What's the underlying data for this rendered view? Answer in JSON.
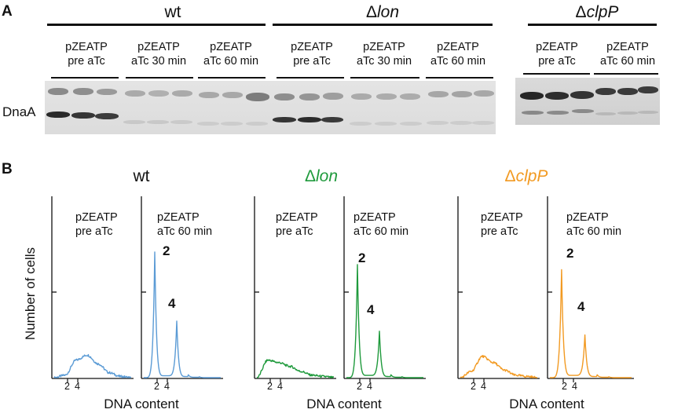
{
  "panel_a": {
    "letter": "A",
    "genotypes": {
      "wt": "wt",
      "lon_delta": "Δ",
      "lon_name": "lon",
      "clpp_delta": "Δ",
      "clpp_name": "clpP"
    },
    "lane_groups": [
      {
        "line1": "pZEATP",
        "line2": "pre aTc"
      },
      {
        "line1": "pZEATP",
        "line2": "aTc 30 min"
      },
      {
        "line1": "pZEATP",
        "line2": "aTc 60 min"
      },
      {
        "line1": "pZEATP",
        "line2": "pre aTc"
      },
      {
        "line1": "pZEATP",
        "line2": "aTc 30 min"
      },
      {
        "line1": "pZEATP",
        "line2": "aTc 60 min"
      },
      {
        "line1": "pZEATP",
        "line2": "pre aTc"
      },
      {
        "line1": "pZEATP",
        "line2": "aTc 60 min"
      }
    ],
    "band_label": "DnaA"
  },
  "panel_b": {
    "letter": "B",
    "titles": [
      {
        "prefix": "",
        "name": "wt",
        "color": "#111111"
      },
      {
        "prefix": "Δ",
        "name": "lon",
        "color": "#1f9a3c"
      },
      {
        "prefix": "Δ",
        "name": "clpP",
        "color": "#f29a22"
      }
    ],
    "ylabel": "Number of cells",
    "xlabel": "DNA content",
    "condition_labels": [
      {
        "line1": "pZEATP",
        "line2": "pre aTc"
      },
      {
        "line1": "pZEATP",
        "line2": "aTc 60 min"
      }
    ],
    "peak_labels": {
      "first": "2",
      "second": "4"
    },
    "tick_labels": {
      "first": "2",
      "second": "4"
    },
    "series_colors": {
      "wt": "#5b9bd5",
      "lon": "#1f9a3c",
      "clpp": "#f29a22"
    }
  },
  "chart_data": [
    {
      "type": "line",
      "title": "wt",
      "subplot": "pZEATP pre aTc",
      "xlabel": "DNA content",
      "ylabel": "Number of cells",
      "x": [
        1,
        2,
        3,
        4,
        5,
        6,
        7,
        8
      ],
      "y": [
        0,
        2,
        14,
        18,
        11,
        4,
        1,
        0
      ],
      "xticks": [
        "2",
        "4"
      ],
      "color": "#5b9bd5"
    },
    {
      "type": "line",
      "title": "wt",
      "subplot": "pZEATP aTc 60 min",
      "xlabel": "DNA content",
      "ylabel": "Number of cells",
      "x": [
        1,
        2,
        3,
        4,
        5,
        6,
        7,
        8
      ],
      "y": [
        0,
        100,
        5,
        45,
        3,
        1,
        0,
        0
      ],
      "xticks": [
        "2",
        "4"
      ],
      "peak_labels": [
        "2",
        "4"
      ],
      "color": "#5b9bd5"
    },
    {
      "type": "line",
      "title": "Δlon",
      "subplot": "pZEATP pre aTc",
      "xlabel": "DNA content",
      "ylabel": "Number of cells",
      "x": [
        1,
        2,
        3,
        4,
        5,
        6,
        7,
        8
      ],
      "y": [
        0,
        14,
        12,
        9,
        5,
        2,
        1,
        0
      ],
      "xticks": [
        "2",
        "4"
      ],
      "color": "#1f9a3c"
    },
    {
      "type": "line",
      "title": "Δlon",
      "subplot": "pZEATP aTc 60 min",
      "xlabel": "DNA content",
      "ylabel": "Number of cells",
      "x": [
        1,
        2,
        3,
        4,
        5,
        6,
        7,
        8
      ],
      "y": [
        0,
        90,
        6,
        37,
        3,
        1,
        0,
        0
      ],
      "xticks": [
        "2",
        "4"
      ],
      "peak_labels": [
        "2",
        "4"
      ],
      "color": "#1f9a3c"
    },
    {
      "type": "line",
      "title": "ΔclpP",
      "subplot": "pZEATP pre aTc",
      "xlabel": "DNA content",
      "ylabel": "Number of cells",
      "x": [
        1,
        2,
        3,
        4,
        5,
        6,
        7,
        8
      ],
      "y": [
        0,
        5,
        17,
        12,
        6,
        2,
        1,
        0
      ],
      "xticks": [
        "2",
        "4"
      ],
      "color": "#f29a22"
    },
    {
      "type": "line",
      "title": "ΔclpP",
      "subplot": "pZEATP aTc 60 min",
      "xlabel": "DNA content",
      "ylabel": "Number of cells",
      "x": [
        1,
        2,
        3,
        4,
        5,
        6,
        7,
        8
      ],
      "y": [
        0,
        86,
        6,
        34,
        3,
        1,
        0,
        0
      ],
      "xticks": [
        "2",
        "4"
      ],
      "peak_labels": [
        "2",
        "4"
      ],
      "color": "#f29a22"
    }
  ]
}
